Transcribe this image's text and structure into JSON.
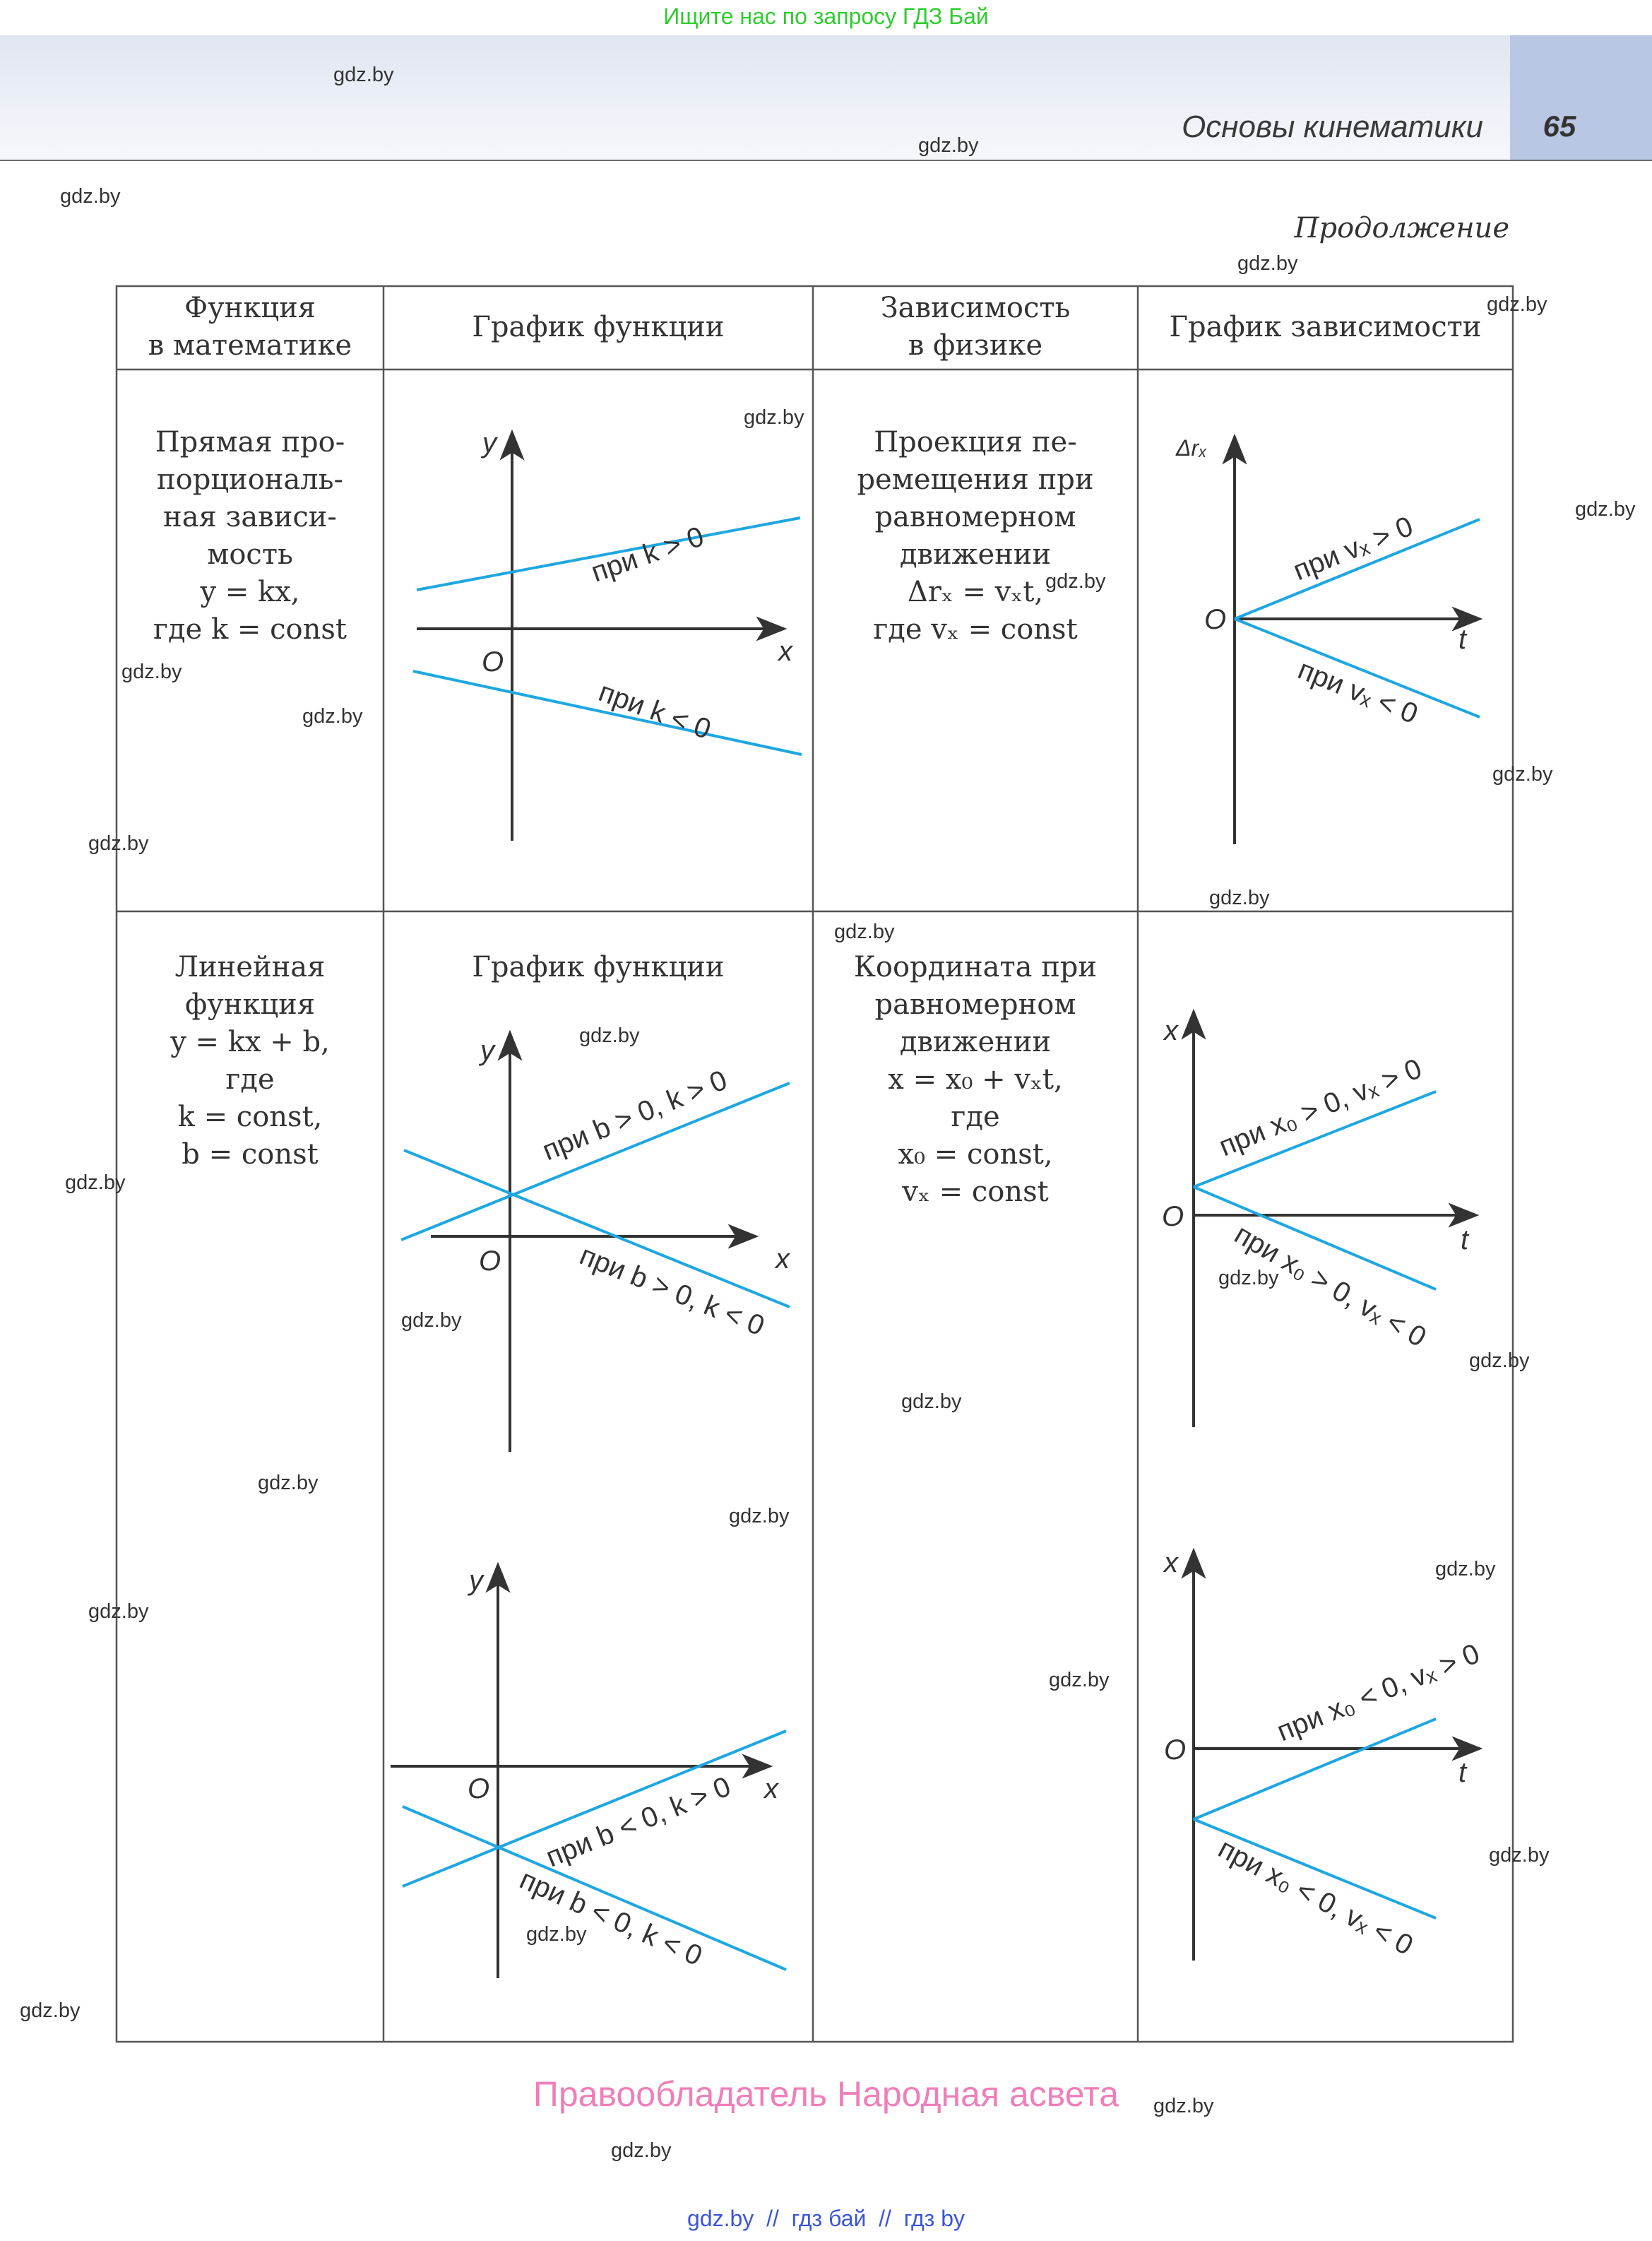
{
  "banner": "Ищите нас по запросу ГДЗ Бай",
  "header": {
    "title": "Основы кинематики",
    "page": "65"
  },
  "continuation": "Продолжение",
  "table": {
    "headers": [
      "Функция\nв математике",
      "График функции",
      "Зависимость\nв физике",
      "График зависимости"
    ],
    "row1": {
      "math": "Прямая про-\nпорциональ-\nная зависи-\nмость\ny = kx,\nгде k = const",
      "physics": "Проекция пе-\nремещения при\nравномерном\nдвижении\nΔrₓ = vₓt,\nгде vₓ = const",
      "graph1": {
        "y": "y",
        "x": "x",
        "o": "O",
        "pos": "при k > 0",
        "neg": "при k < 0"
      },
      "graph2": {
        "y": "Δrₓ",
        "x": "t",
        "o": "O",
        "pos": "при vₓ > 0",
        "neg": "при vₓ < 0"
      }
    },
    "row2": {
      "math": "Линейная\nфункция\ny = kx + b,\nгде\nk = const,\nb = const",
      "graph_title": "График функции",
      "physics": "Координата при\nравномерном\nдвижении\nx = x₀ + vₓt,\nгде\nx₀ = const,\nvₓ = const",
      "graph1": {
        "y": "y",
        "x": "x",
        "o": "O",
        "pos": "при b > 0, k > 0",
        "neg": "при b > 0, k < 0"
      },
      "graph2": {
        "y": "x",
        "x": "t",
        "o": "O",
        "pos": "при x₀ > 0, vₓ > 0",
        "neg": "при x₀ > 0, vₓ < 0"
      },
      "graph3": {
        "y": "y",
        "x": "x",
        "o": "O",
        "pos": "при b < 0, k > 0",
        "neg": "при b < 0, k < 0"
      },
      "graph4": {
        "y": "x",
        "x": "t",
        "o": "O",
        "pos": "при x₀ < 0, vₓ > 0",
        "neg": "при x₀ < 0, vₓ < 0"
      }
    }
  },
  "watermark": "gdz.by",
  "copyright": "Правообладатель Народная асвета",
  "footer": "gdz.by  //  гдз бай  //  гдз by",
  "colors": {
    "line": "#1ea7e0",
    "axis": "#333333",
    "header_band": "#dfe5f1",
    "page_box": "#b9c6e4"
  }
}
